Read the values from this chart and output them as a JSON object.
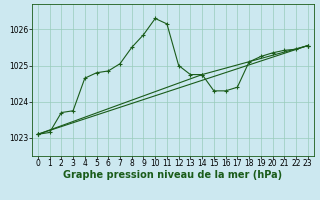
{
  "title": "Graphe pression niveau de la mer (hPa)",
  "bg_color": "#cce8f0",
  "grid_color": "#99ccbb",
  "line_color": "#1a5c1a",
  "xlim": [
    -0.5,
    23.5
  ],
  "ylim": [
    1022.5,
    1026.7
  ],
  "yticks": [
    1023,
    1024,
    1025,
    1026
  ],
  "xticks": [
    0,
    1,
    2,
    3,
    4,
    5,
    6,
    7,
    8,
    9,
    10,
    11,
    12,
    13,
    14,
    15,
    16,
    17,
    18,
    19,
    20,
    21,
    22,
    23
  ],
  "series1_x": [
    0,
    1,
    2,
    3,
    4,
    5,
    6,
    7,
    8,
    9,
    10,
    11,
    12,
    13,
    14,
    15,
    16,
    17,
    18,
    19,
    20,
    21,
    22,
    23
  ],
  "series1_y": [
    1023.1,
    1023.15,
    1023.7,
    1023.75,
    1024.65,
    1024.8,
    1024.85,
    1025.05,
    1025.5,
    1025.85,
    1026.3,
    1026.15,
    1025.0,
    1024.75,
    1024.75,
    1024.3,
    1024.3,
    1024.4,
    1025.1,
    1025.25,
    1025.35,
    1025.42,
    1025.45,
    1025.55
  ],
  "series2_x": [
    0,
    14,
    23
  ],
  "series2_y": [
    1023.1,
    1024.75,
    1025.55
  ],
  "series3_x": [
    0,
    23
  ],
  "series3_y": [
    1023.1,
    1025.55
  ],
  "tick_fontsize": 5.5,
  "title_fontsize": 7.0,
  "marker_size": 3.5,
  "line_width": 0.8
}
